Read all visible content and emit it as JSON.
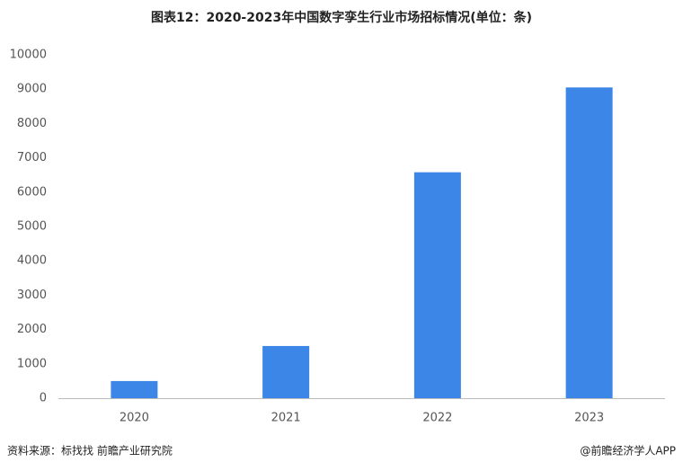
{
  "chart_data": {
    "type": "bar",
    "title": "图表12：2020-2023年中国数字孪生行业市场招标情况(单位：条)",
    "categories": [
      "2020",
      "2021",
      "2022",
      "2023"
    ],
    "values": [
      500,
      1520,
      6580,
      9050
    ],
    "color": "#3b86e6",
    "ylim": [
      0,
      10000
    ],
    "yticks": [
      0,
      1000,
      2000,
      3000,
      4000,
      5000,
      6000,
      7000,
      8000,
      9000,
      10000
    ],
    "grid": false,
    "source": "资料来源：标找找 前瞻产业研究院",
    "footer": "@前瞻经济学人APP"
  }
}
